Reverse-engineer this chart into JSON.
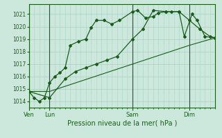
{
  "title": "Pression niveau de la mer( hPa )",
  "background_color": "#cce8dd",
  "grid_color": "#aad4c8",
  "line_color": "#1a5c1a",
  "ylim": [
    1013.5,
    1021.8
  ],
  "yticks": [
    1014,
    1015,
    1016,
    1017,
    1018,
    1019,
    1020,
    1021
  ],
  "day_labels": [
    "Ven",
    "Lun",
    "Sam",
    "Dim"
  ],
  "day_positions": [
    0,
    16,
    80,
    124
  ],
  "total_points": 144,
  "line1_x": [
    0,
    4,
    8,
    12,
    16,
    20,
    24,
    28,
    32,
    38,
    44,
    48,
    52,
    58,
    64,
    70,
    80,
    84,
    90,
    96,
    100,
    106,
    110,
    116,
    120,
    126,
    130,
    136,
    144
  ],
  "line1_y": [
    1014.8,
    1014.3,
    1014.0,
    1014.3,
    1015.5,
    1016.0,
    1016.3,
    1016.7,
    1018.5,
    1018.8,
    1019.0,
    1019.9,
    1020.5,
    1020.5,
    1020.2,
    1020.5,
    1021.2,
    1021.3,
    1020.7,
    1020.8,
    1021.1,
    1021.2,
    1021.2,
    1021.2,
    1019.2,
    1021.0,
    1020.5,
    1019.2,
    1019.1
  ],
  "line2_x": [
    0,
    16,
    28,
    36,
    44,
    52,
    60,
    68,
    80,
    88,
    96,
    106,
    116,
    124,
    132,
    140,
    144
  ],
  "line2_y": [
    1014.8,
    1014.3,
    1015.8,
    1016.4,
    1016.7,
    1017.0,
    1017.3,
    1017.6,
    1019.0,
    1019.8,
    1021.3,
    1021.2,
    1021.2,
    1020.5,
    1019.8,
    1019.2,
    1019.1
  ],
  "line3_x": [
    0,
    16,
    124,
    144
  ],
  "line3_y": [
    1014.8,
    1014.8,
    1018.5,
    1019.1
  ]
}
